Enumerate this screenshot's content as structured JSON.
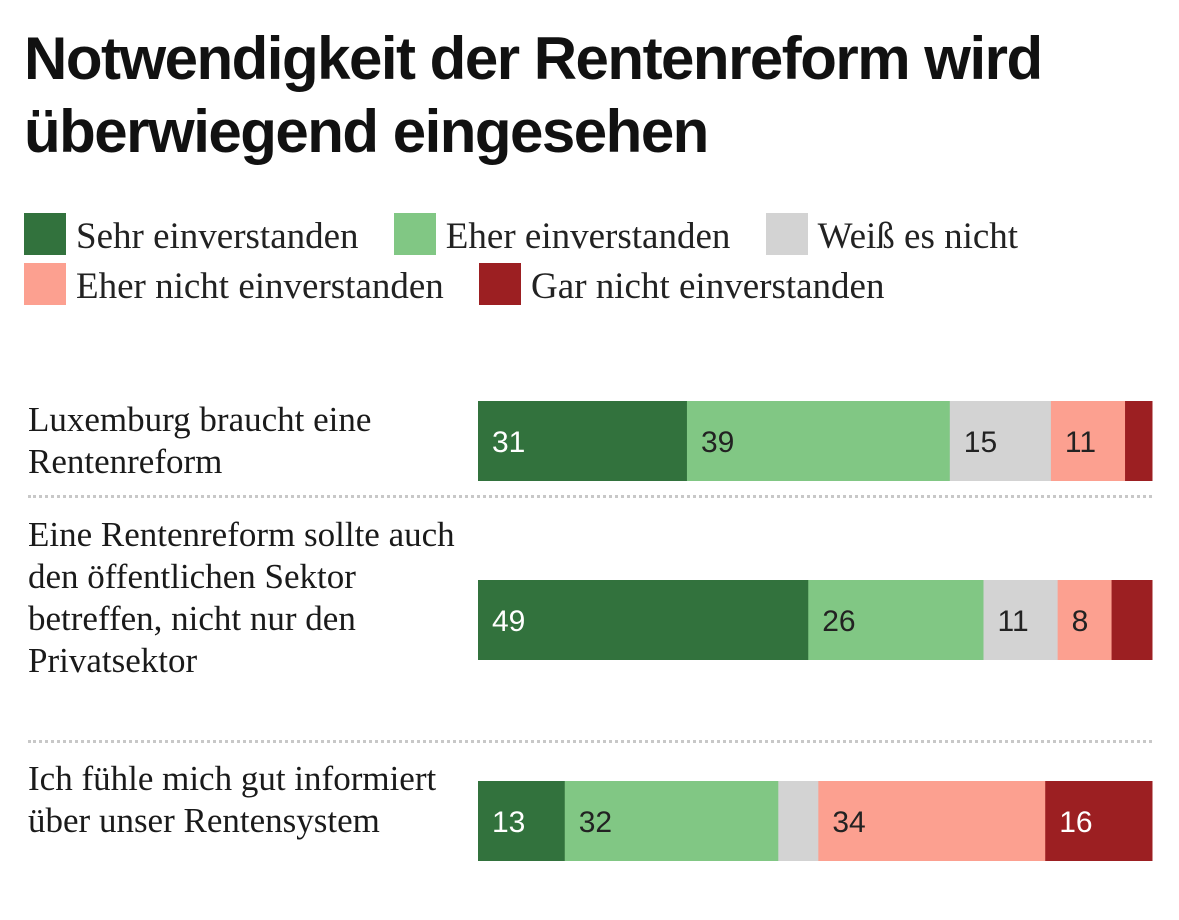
{
  "title": "Notwendigkeit der Rentenreform wird überwiegend eingesehen",
  "chart_data": {
    "type": "bar",
    "orientation": "horizontal",
    "stacked": true,
    "title": "Notwendigkeit der Rentenreform wird überwiegend eingesehen",
    "categories": [
      "Luxemburg braucht eine Rentenreform",
      "Eine Rentenreform sollte auch den öffentlichen Sektor betreffen, nicht nur den Privatsektor",
      "Ich fühle mich gut informiert über unser Rentensystem"
    ],
    "series": [
      {
        "name": "Sehr einverstanden",
        "color": "#32723d",
        "text_color": "#ffffff",
        "values": [
          31,
          49,
          13
        ],
        "labels": [
          "31",
          "49",
          "13"
        ]
      },
      {
        "name": "Eher einverstanden",
        "color": "#81c784",
        "text_color": "#222222",
        "values": [
          39,
          26,
          32
        ],
        "labels": [
          "39",
          "26",
          "32"
        ]
      },
      {
        "name": "Weiß es nicht",
        "color": "#d3d3d3",
        "text_color": "#222222",
        "values": [
          15,
          11,
          6
        ],
        "labels": [
          "15",
          "11",
          ""
        ]
      },
      {
        "name": "Eher nicht einverstanden",
        "color": "#fca090",
        "text_color": "#222222",
        "values": [
          11,
          8,
          34
        ],
        "labels": [
          "11",
          "8",
          "34"
        ]
      },
      {
        "name": "Gar nicht einverstanden",
        "color": "#9c1f22",
        "text_color": "#ffffff",
        "values": [
          4,
          6,
          16
        ],
        "labels": [
          "",
          "",
          "16"
        ]
      }
    ],
    "xlim": [
      0,
      100
    ],
    "legend_position": "top",
    "xlabel": "",
    "ylabel": ""
  }
}
